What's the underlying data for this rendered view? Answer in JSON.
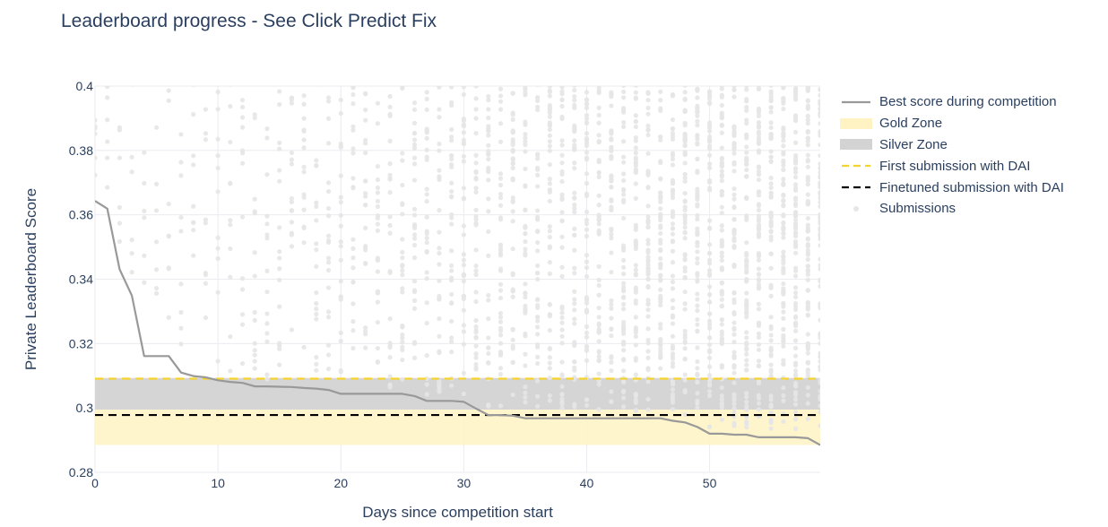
{
  "title": "Leaderboard progress - See Click Predict Fix",
  "colors": {
    "best_line": "#999999",
    "gold_zone": "#fff3c4",
    "silver_zone": "#d3d3d3",
    "first_dai": "#f5d42f",
    "finetuned_dai": "#000000",
    "submissions": "#e6e6e6",
    "grid": "#ebebf0",
    "text": "#2a3f5f"
  },
  "legend": [
    {
      "label": "Best score during competition",
      "icon": "solid-line",
      "color": "#999999"
    },
    {
      "label": "Gold Zone",
      "icon": "filled-band",
      "color": "#fff3c4"
    },
    {
      "label": "Silver Zone",
      "icon": "filled-band",
      "color": "#d3d3d3"
    },
    {
      "label": "First submission with DAI",
      "icon": "dashed-line",
      "color": "#f5d42f"
    },
    {
      "label": "Finetuned submission with DAI",
      "icon": "dashed-line",
      "color": "#000000"
    },
    {
      "label": "Submissions",
      "icon": "dot",
      "color": "#e6e6e6"
    }
  ],
  "chart_data": {
    "type": "line",
    "title": "Leaderboard progress - See Click Predict Fix",
    "xlabel": "Days since competition start",
    "ylabel": "Private Leaderboard Score",
    "xlim": [
      0,
      59
    ],
    "ylim": [
      0.28,
      0.4
    ],
    "x_ticks": [
      0,
      10,
      20,
      30,
      40,
      50
    ],
    "y_ticks": [
      0.28,
      0.3,
      0.32,
      0.34,
      0.36,
      0.38,
      0.4
    ],
    "y_tick_labels": [
      "0.28",
      "0.3",
      "0.32",
      "0.34",
      "0.36",
      "0.38",
      "0.4"
    ],
    "grid": true,
    "legend_position": "right",
    "series": [
      {
        "name": "Best score during competition",
        "type": "line",
        "x": [
          0,
          1,
          2,
          3,
          4,
          5,
          6,
          7,
          8,
          9,
          10,
          11,
          12,
          13,
          14,
          15,
          16,
          17,
          18,
          19,
          20,
          21,
          22,
          23,
          24,
          25,
          26,
          27,
          28,
          29,
          30,
          31,
          32,
          33,
          34,
          35,
          36,
          37,
          38,
          39,
          40,
          41,
          42,
          43,
          44,
          45,
          46,
          47,
          48,
          49,
          50,
          51,
          52,
          53,
          54,
          55,
          56,
          57,
          58,
          59
        ],
        "y": [
          0.3643,
          0.3619,
          0.3431,
          0.3349,
          0.3161,
          0.3161,
          0.3161,
          0.311,
          0.3099,
          0.3095,
          0.3086,
          0.3081,
          0.3078,
          0.3067,
          0.3067,
          0.3066,
          0.3065,
          0.3062,
          0.306,
          0.3056,
          0.3044,
          0.3044,
          0.3044,
          0.3044,
          0.3044,
          0.3044,
          0.3037,
          0.3022,
          0.3022,
          0.3022,
          0.3019,
          0.2998,
          0.2978,
          0.2978,
          0.2976,
          0.2968,
          0.2968,
          0.2968,
          0.2968,
          0.2968,
          0.2968,
          0.2968,
          0.2968,
          0.2968,
          0.2968,
          0.2968,
          0.2968,
          0.296,
          0.2955,
          0.2941,
          0.292,
          0.292,
          0.2917,
          0.2917,
          0.2909,
          0.2909,
          0.2909,
          0.2909,
          0.2906,
          0.2885
        ]
      },
      {
        "name": "Gold Zone",
        "type": "band",
        "y_from": 0.2885,
        "y_to": 0.2995
      },
      {
        "name": "Silver Zone",
        "type": "band",
        "y_from": 0.2995,
        "y_to": 0.3093
      },
      {
        "name": "First submission with DAI",
        "type": "hline",
        "y": 0.3091
      },
      {
        "name": "Finetuned submission with DAI",
        "type": "hline",
        "y": 0.2978
      },
      {
        "name": "Submissions",
        "type": "scatter",
        "note": "dense cloud of light-gray points, one column per day, spread from the best score up past 0.4"
      }
    ]
  }
}
